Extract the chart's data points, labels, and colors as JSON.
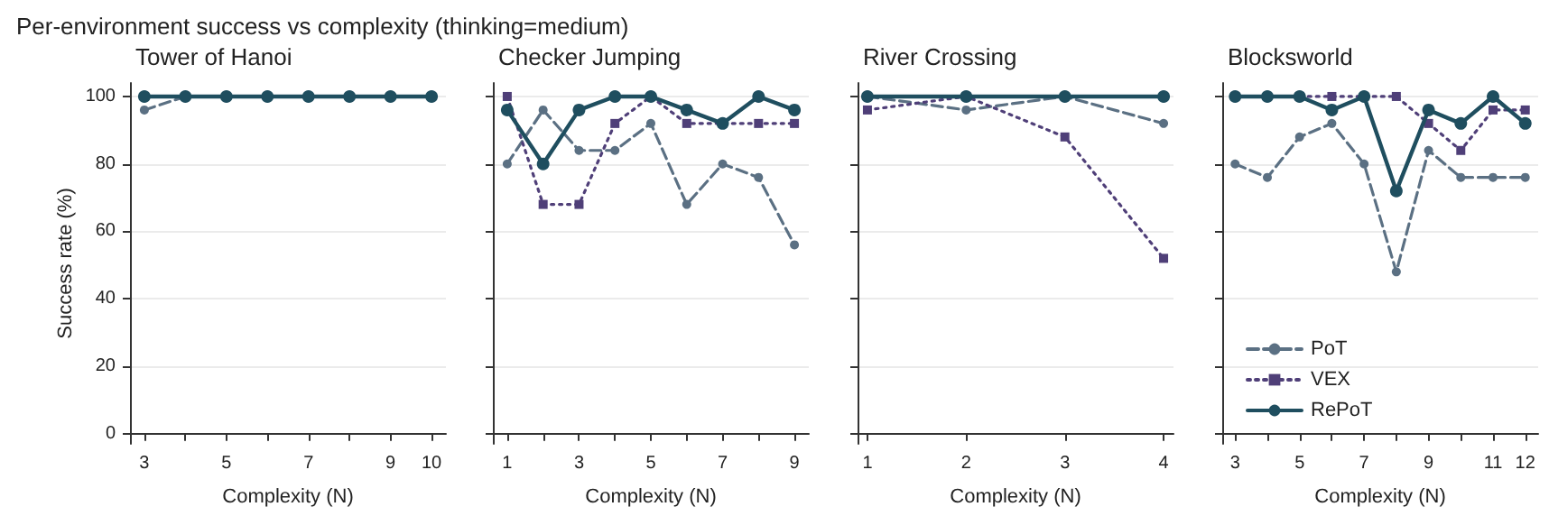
{
  "chart_data": [
    {
      "type": "line",
      "title": "Tower of Hanoi",
      "xlabel": "Complexity (N)",
      "ylabel": "Success rate (%)",
      "annotations": [
        "Per-environment success vs complexity (thinking=medium)"
      ],
      "x": [
        3,
        4,
        5,
        6,
        7,
        8,
        9,
        10
      ],
      "xlim": [
        2.65,
        10.35
      ],
      "xticks": [
        3,
        {
          "value": 4,
          "label": null
        },
        5,
        {
          "value": 6,
          "label": null
        },
        7,
        {
          "value": 8,
          "label": null
        },
        9,
        10
      ],
      "ylim": [
        -3,
        104
      ],
      "yticks": [
        0,
        20,
        40,
        60,
        80,
        100
      ],
      "grid": "y",
      "legend": false,
      "series": [
        {
          "color": "#5b7083",
          "marker": "circle",
          "line_style": "dashed",
          "values": [
            96,
            100,
            null,
            null,
            null,
            null,
            null,
            null
          ]
        },
        {
          "color": "#4f3f78",
          "marker": "square",
          "line_style": "dotted",
          "values": [
            null,
            null,
            null,
            null,
            null,
            null,
            null,
            null
          ]
        },
        {
          "color": "#1f4e5f",
          "marker": "circle",
          "line_style": "solid",
          "values": [
            100,
            100,
            100,
            100,
            100,
            100,
            100,
            100
          ]
        }
      ]
    },
    {
      "type": "line",
      "title": "Checker Jumping",
      "xlabel": "Complexity (N)",
      "tick_labels": "x",
      "x": [
        1,
        2,
        3,
        4,
        5,
        6,
        7,
        8,
        9
      ],
      "xlim": [
        0.6,
        9.4
      ],
      "xticks": [
        1,
        {
          "value": 2,
          "label": null
        },
        3,
        {
          "value": 4,
          "label": null
        },
        5,
        {
          "value": 6,
          "label": null
        },
        7,
        {
          "value": 8,
          "label": null
        },
        9
      ],
      "ylim": [
        -3,
        104
      ],
      "yticks": [
        0,
        20,
        40,
        60,
        80,
        100
      ],
      "grid": "y",
      "legend": false,
      "series": [
        {
          "color": "#5b7083",
          "marker": "circle",
          "line_style": "dashed",
          "values": [
            80,
            96,
            84,
            84,
            92,
            68,
            80,
            76,
            56
          ]
        },
        {
          "color": "#4f3f78",
          "marker": "square",
          "line_style": "dotted",
          "values": [
            100,
            68,
            68,
            92,
            100,
            92,
            92,
            92,
            92
          ]
        },
        {
          "color": "#1f4e5f",
          "marker": "circle",
          "line_style": "solid",
          "values": [
            96,
            80,
            96,
            100,
            100,
            96,
            92,
            100,
            96
          ]
        }
      ]
    },
    {
      "type": "line",
      "title": "River Crossing",
      "xlabel": "Complexity (N)",
      "tick_labels": "x",
      "x": [
        1,
        2,
        3,
        4
      ],
      "xlim": [
        0.9,
        4.1
      ],
      "xticks": [
        1,
        2,
        3,
        4
      ],
      "ylim": [
        -3,
        104
      ],
      "yticks": [
        0,
        20,
        40,
        60,
        80,
        100
      ],
      "grid": "y",
      "legend": false,
      "series": [
        {
          "color": "#5b7083",
          "marker": "circle",
          "line_style": "dashed",
          "values": [
            100,
            96,
            100,
            92
          ]
        },
        {
          "color": "#4f3f78",
          "marker": "square",
          "line_style": "dotted",
          "values": [
            96,
            100,
            88,
            52
          ]
        },
        {
          "color": "#1f4e5f",
          "marker": "circle",
          "line_style": "solid",
          "values": [
            100,
            100,
            100,
            100
          ]
        }
      ]
    },
    {
      "type": "line",
      "title": "Blocksworld",
      "xlabel": "Complexity (N)",
      "tick_labels": "x",
      "x": [
        3,
        4,
        5,
        6,
        7,
        8,
        9,
        10,
        11,
        12
      ],
      "xlim": [
        2.6,
        12.4
      ],
      "xticks": [
        3,
        {
          "value": 4,
          "label": null
        },
        5,
        {
          "value": 6,
          "label": null
        },
        7,
        {
          "value": 8,
          "label": null
        },
        9,
        {
          "value": 10,
          "label": null
        },
        11,
        12
      ],
      "ylim": [
        -3,
        104
      ],
      "yticks": [
        0,
        20,
        40,
        60,
        80,
        100
      ],
      "grid": "y",
      "legend": "bottom left",
      "series": [
        {
          "name": "PoT",
          "color": "#5b7083",
          "marker": "circle",
          "line_style": "dashed",
          "values": [
            80,
            76,
            88,
            92,
            80,
            48,
            84,
            76,
            76,
            76
          ]
        },
        {
          "name": "VEX",
          "color": "#4f3f78",
          "marker": "square",
          "line_style": "dotted",
          "values": [
            100,
            100,
            100,
            100,
            100,
            100,
            92,
            84,
            96,
            96
          ]
        },
        {
          "name": "RePoT",
          "color": "#1f4e5f",
          "marker": "circle",
          "line_style": "solid",
          "values": [
            100,
            100,
            100,
            96,
            100,
            72,
            96,
            92,
            100,
            92
          ]
        }
      ]
    }
  ]
}
